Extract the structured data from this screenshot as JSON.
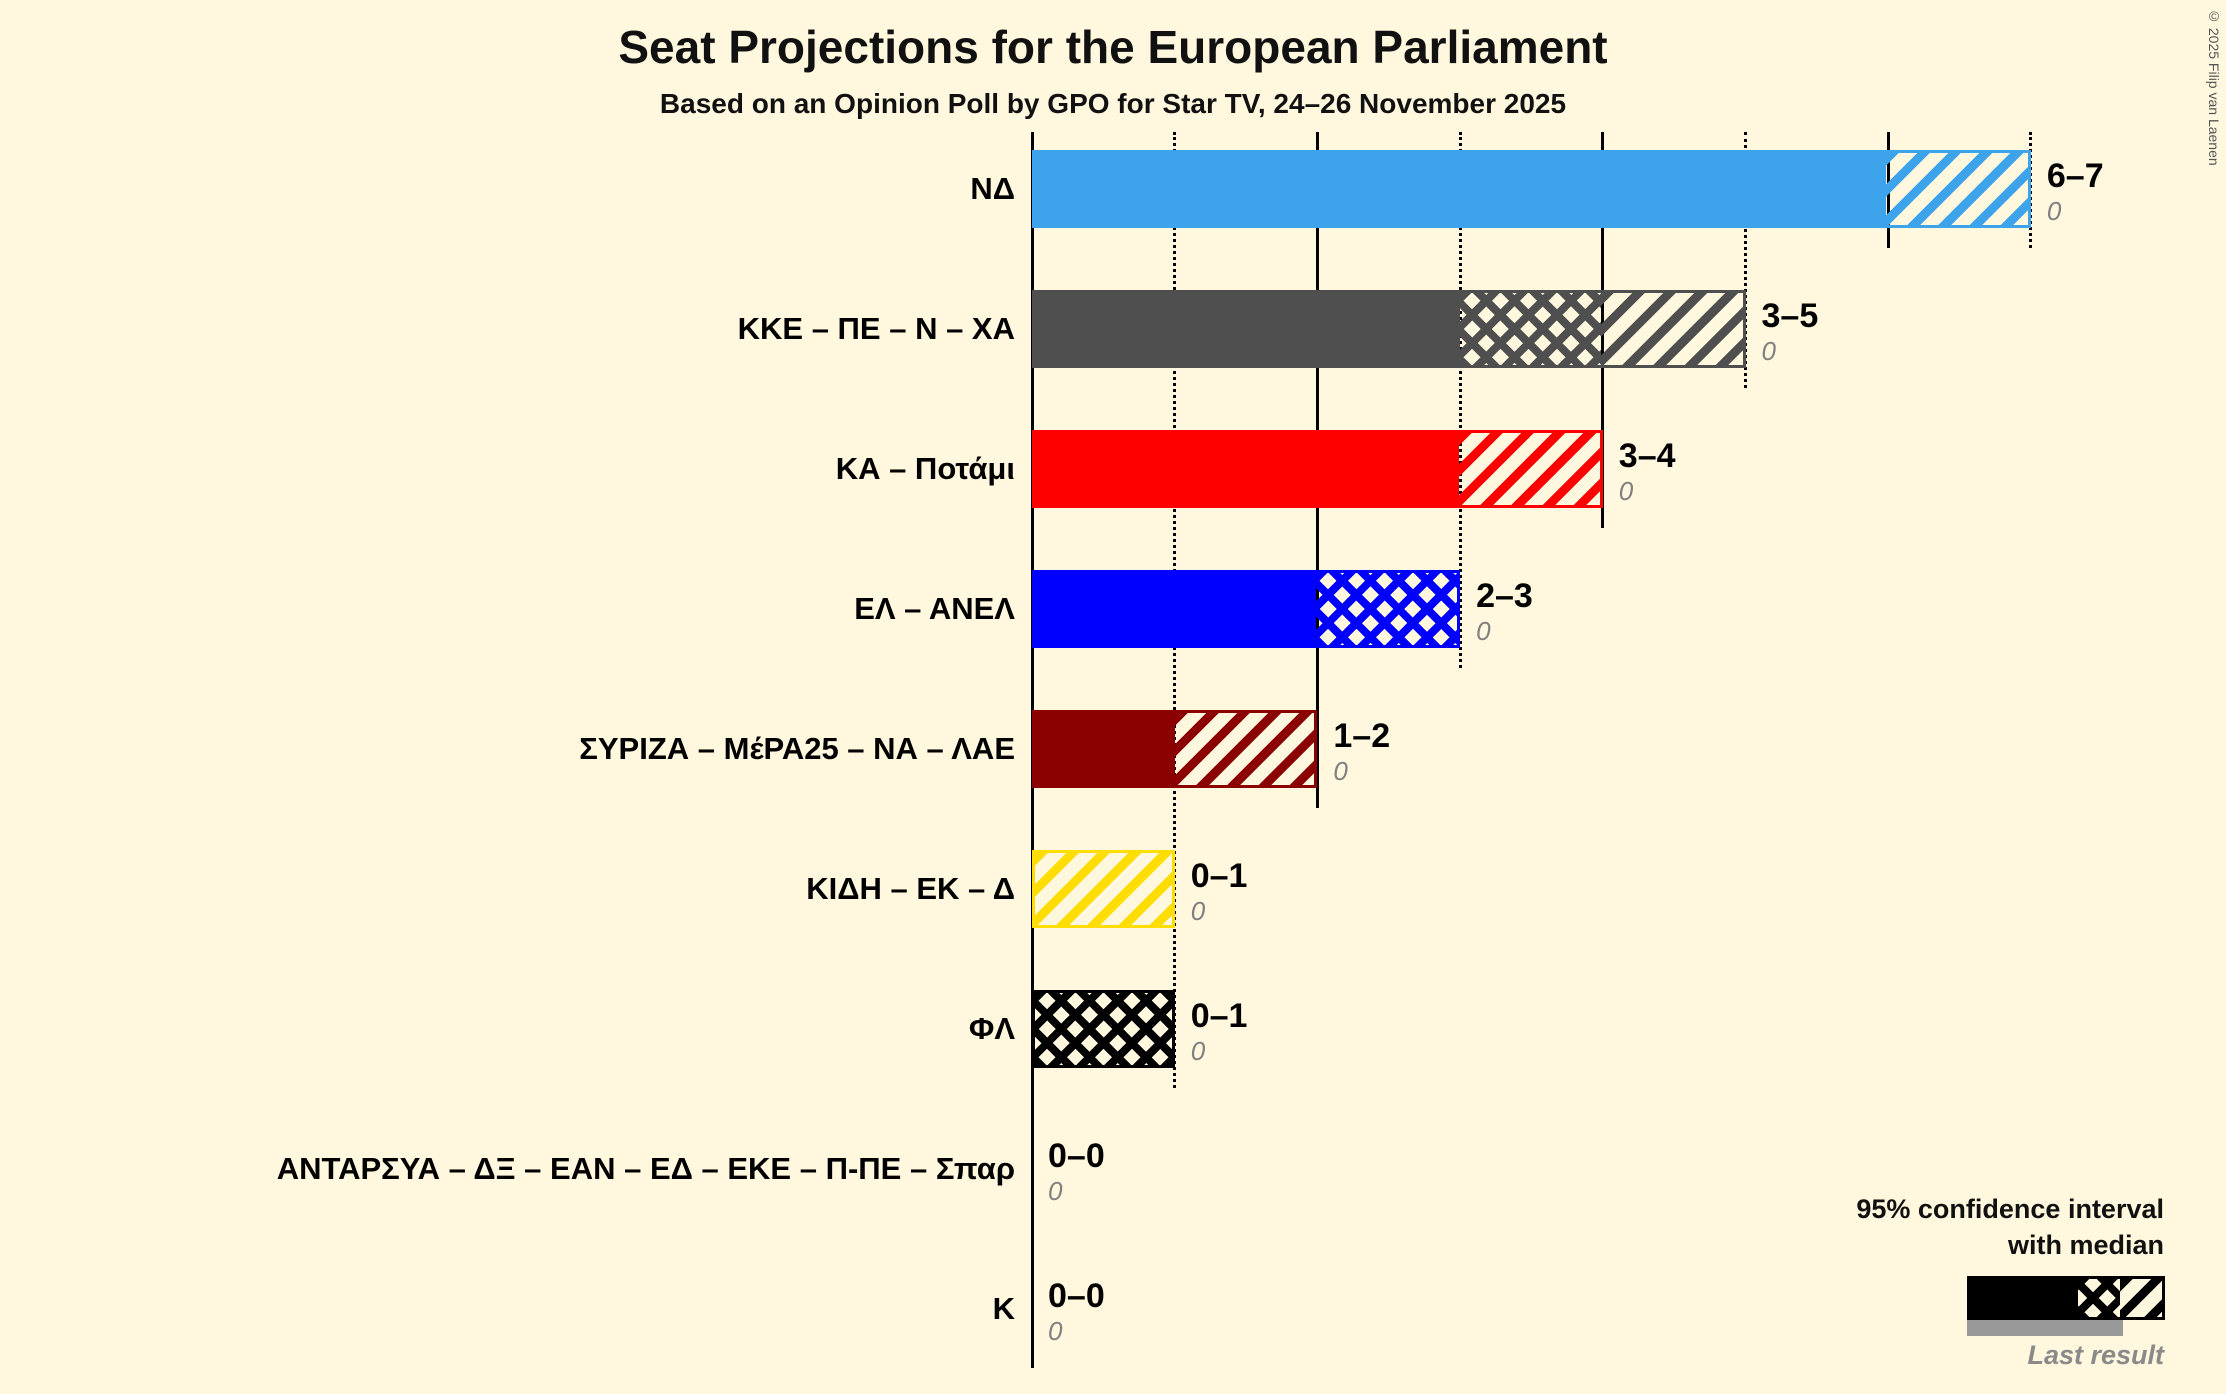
{
  "title": "Seat Projections for the European Parliament",
  "subtitle": "Based on an Opinion Poll by GPO for Star TV, 24–26 November 2025",
  "copyright": "© 2025 Filip van Laenen",
  "legend": {
    "ci_line1": "95% confidence interval",
    "ci_line2": "with median",
    "last_result": "Last result"
  },
  "chart_data": {
    "type": "bar",
    "orientation": "horizontal",
    "title": "Seat Projections for the European Parliament",
    "subtitle": "Based on an Opinion Poll by GPO for Star TV, 24–26 November 2025",
    "unit": "seats",
    "ci_level": "95%",
    "background_color": "#FFF8DE",
    "x_axis": {
      "min": 0,
      "max": 7,
      "gridline_seats": [
        1,
        2,
        3,
        4,
        5,
        6,
        7
      ],
      "tick_labels_visible": false
    },
    "parties": [
      {
        "label": "ΝΔ",
        "color": "#3DA4EC",
        "ci": "6–7",
        "ci_low": 6,
        "median": 6,
        "ci_high": 7,
        "last_result": "0"
      },
      {
        "label": "ΚΚΕ – ΠΕ – Ν – ΧΑ",
        "color": "#4F4F4F",
        "ci": "3–5",
        "ci_low": 3,
        "median": 4,
        "ci_high": 5,
        "last_result": "0"
      },
      {
        "label": "ΚΑ – Ποτάμι",
        "color": "#FF0000",
        "ci": "3–4",
        "ci_low": 3,
        "median": 3,
        "ci_high": 4,
        "last_result": "0"
      },
      {
        "label": "ΕΛ – ΑΝΕΛ",
        "color": "#0000FF",
        "ci": "2–3",
        "ci_low": 2,
        "median": 3,
        "ci_high": 3,
        "last_result": "0"
      },
      {
        "label": "ΣΥΡΙΖΑ – ΜέΡΑ25 – ΝΑ – ΛΑΕ",
        "color": "#8B0000",
        "ci": "1–2",
        "ci_low": 1,
        "median": 1,
        "ci_high": 2,
        "last_result": "0"
      },
      {
        "label": "ΚΙΔΗ – ΕΚ – Δ",
        "color": "#FFDD00",
        "ci": "0–1",
        "ci_low": 0,
        "median": 0,
        "ci_high": 1,
        "last_result": "0"
      },
      {
        "label": "ΦΛ",
        "color": "#000000",
        "ci": "0–1",
        "ci_low": 0,
        "median": 1,
        "ci_high": 1,
        "last_result": "0"
      },
      {
        "label": "ΑΝΤΑΡΣΥΑ – ΔΞ – ΕΑΝ – ΕΔ – ΕΚΕ – Π-ΠΕ – Σπαρ",
        "color": "#888888",
        "ci": "0–0",
        "ci_low": 0,
        "median": 0,
        "ci_high": 0,
        "last_result": "0"
      },
      {
        "label": "Κ",
        "color": "#888888",
        "ci": "0–0",
        "ci_low": 0,
        "median": 0,
        "ci_high": 0,
        "last_result": "0"
      }
    ]
  }
}
